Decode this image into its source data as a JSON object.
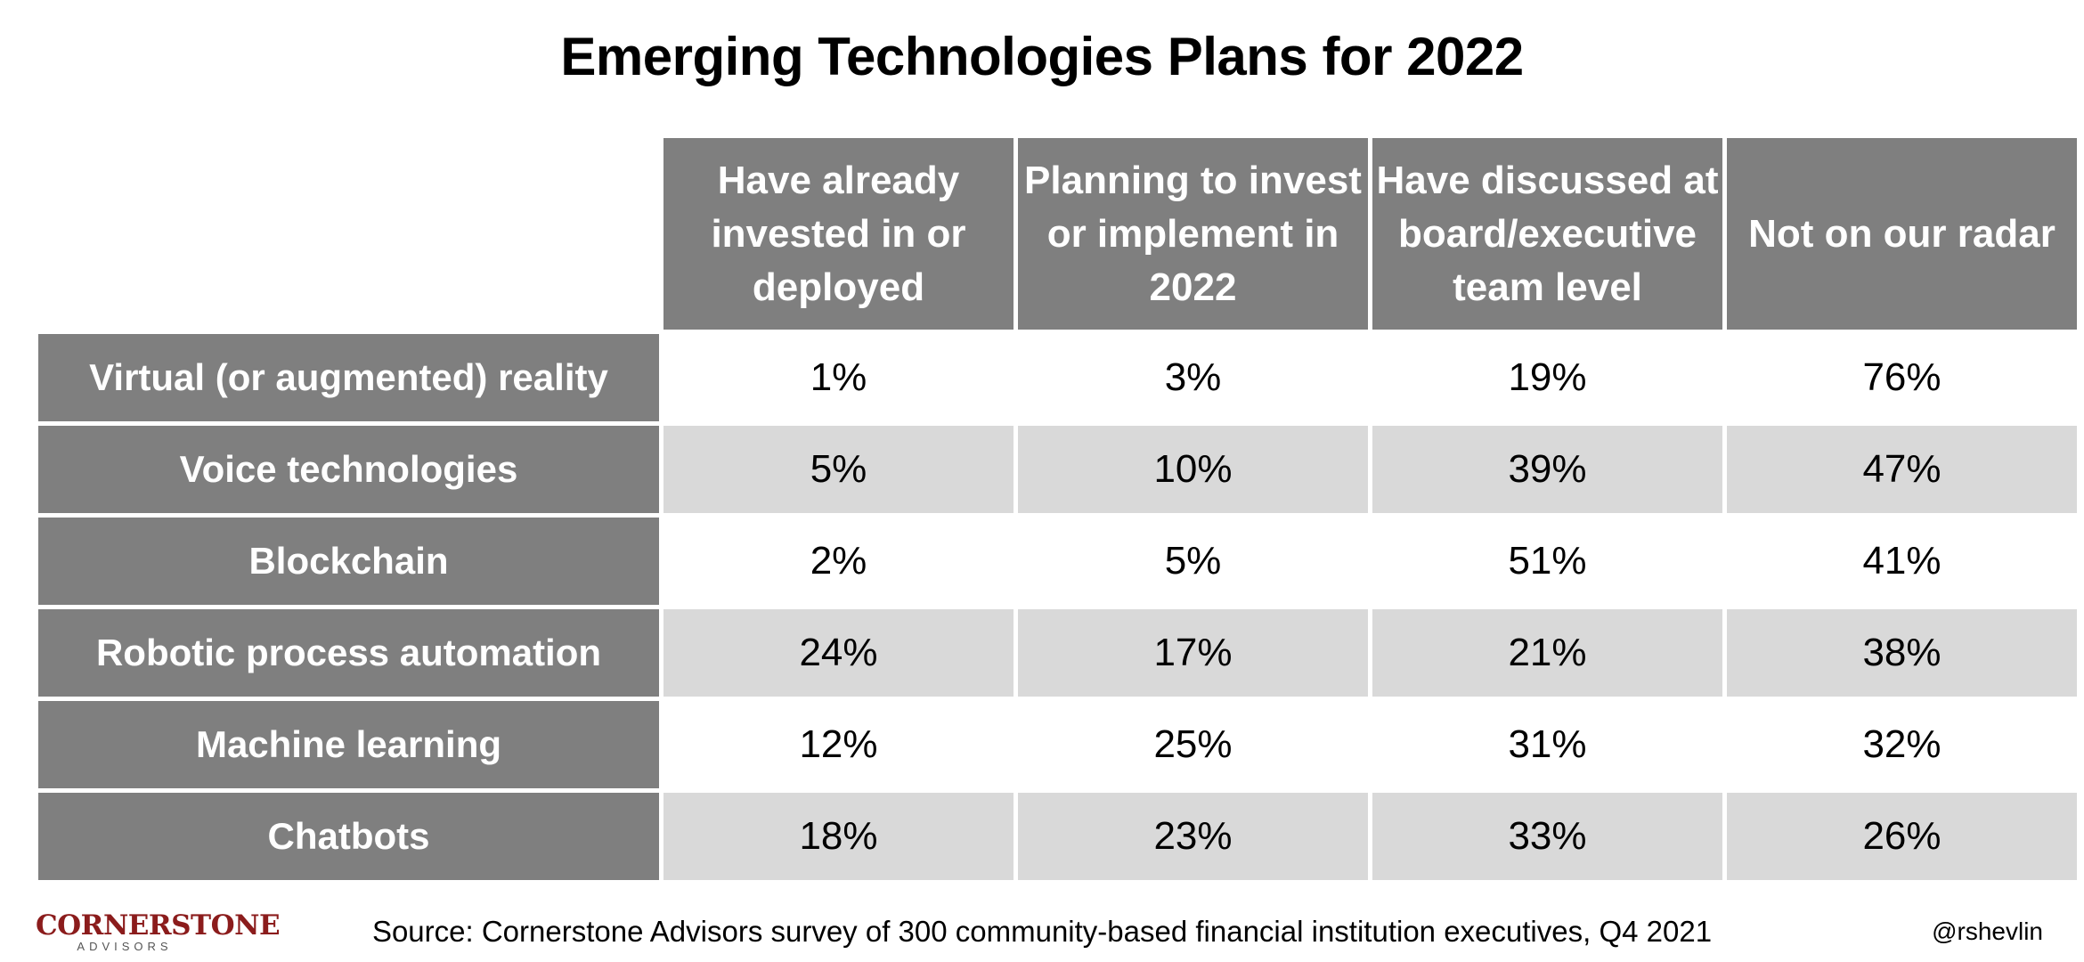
{
  "title": "Emerging Technologies Plans for 2022",
  "chart_data": {
    "type": "table",
    "title": "Emerging Technologies Plans for 2022",
    "columns": [
      "Have already invested in or deployed",
      "Planning to invest or implement in 2022",
      "Have discussed at board/executive team level",
      "Not on our radar"
    ],
    "rows": [
      {
        "label": "Virtual (or augmented) reality",
        "values": [
          "1%",
          "3%",
          "19%",
          "76%"
        ]
      },
      {
        "label": "Voice technologies",
        "values": [
          "5%",
          "10%",
          "39%",
          "47%"
        ]
      },
      {
        "label": "Blockchain",
        "values": [
          "2%",
          "5%",
          "51%",
          "41%"
        ]
      },
      {
        "label": "Robotic process automation",
        "values": [
          "24%",
          "17%",
          "21%",
          "38%"
        ]
      },
      {
        "label": "Machine learning",
        "values": [
          "12%",
          "25%",
          "31%",
          "32%"
        ]
      },
      {
        "label": "Chatbots",
        "values": [
          "18%",
          "23%",
          "33%",
          "26%"
        ]
      }
    ],
    "colors": {
      "header_bg": "#7f7f7f",
      "header_text": "#ffffff",
      "band_light": "#ffffff",
      "band_dark": "#d9d9d9"
    }
  },
  "footer": {
    "logo_main": "CORNERSTONE",
    "logo_sub": "ADVISORS",
    "logo_color": "#8b1c1c",
    "source": "Source: Cornerstone Advisors survey of 300 community-based financial institution executives, Q4 2021",
    "handle": "@rshevlin"
  }
}
